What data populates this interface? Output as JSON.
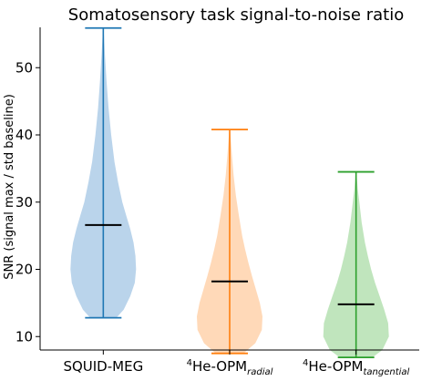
{
  "chart_data": {
    "type": "violin",
    "title": "Somatosensory task signal-to-noise ratio",
    "ylabel": "SNR (signal max / std baseline)",
    "xlabel": "",
    "ylim": [
      8,
      56
    ],
    "yticks": [
      10,
      20,
      30,
      40,
      50
    ],
    "grid": false,
    "categories": [
      {
        "prefix_sup": "",
        "main": "SQUID-MEG",
        "sub": ""
      },
      {
        "prefix_sup": "4",
        "main": "He-OPM",
        "sub": "radial"
      },
      {
        "prefix_sup": "4",
        "main": "He-OPM",
        "sub": "tangential"
      }
    ],
    "series": [
      {
        "color": "#1f77b4",
        "fill": "#aecde8",
        "min": 12.8,
        "max": 55.9,
        "median": 26.6,
        "density": [
          [
            12.8,
            0.4
          ],
          [
            14,
            0.62
          ],
          [
            16,
            0.82
          ],
          [
            18,
            0.96
          ],
          [
            20,
            1.0
          ],
          [
            22,
            0.98
          ],
          [
            24,
            0.92
          ],
          [
            26,
            0.82
          ],
          [
            28,
            0.7
          ],
          [
            30,
            0.58
          ],
          [
            33,
            0.45
          ],
          [
            36,
            0.34
          ],
          [
            40,
            0.24
          ],
          [
            44,
            0.16
          ],
          [
            48,
            0.1
          ],
          [
            52,
            0.05
          ],
          [
            55.9,
            0.01
          ]
        ]
      },
      {
        "color": "#ff7f0e",
        "fill": "#ffd2ac",
        "min": 7.5,
        "max": 40.8,
        "median": 18.2,
        "density": [
          [
            7.5,
            0.42
          ],
          [
            9,
            0.78
          ],
          [
            11,
            0.98
          ],
          [
            13,
            1.0
          ],
          [
            15,
            0.92
          ],
          [
            17,
            0.8
          ],
          [
            19,
            0.68
          ],
          [
            21,
            0.57
          ],
          [
            23,
            0.47
          ],
          [
            25,
            0.38
          ],
          [
            28,
            0.28
          ],
          [
            31,
            0.19
          ],
          [
            34,
            0.12
          ],
          [
            37,
            0.07
          ],
          [
            40.8,
            0.01
          ]
        ]
      },
      {
        "color": "#2ca02c",
        "fill": "#b5e0b2",
        "min": 6.9,
        "max": 34.5,
        "median": 14.8,
        "density": [
          [
            6.9,
            0.5
          ],
          [
            8,
            0.8
          ],
          [
            10,
            1.0
          ],
          [
            12,
            0.98
          ],
          [
            14,
            0.86
          ],
          [
            16,
            0.72
          ],
          [
            18,
            0.58
          ],
          [
            20,
            0.46
          ],
          [
            22,
            0.36
          ],
          [
            24,
            0.27
          ],
          [
            27,
            0.17
          ],
          [
            30,
            0.1
          ],
          [
            32,
            0.05
          ],
          [
            34.5,
            0.01
          ]
        ]
      }
    ]
  }
}
